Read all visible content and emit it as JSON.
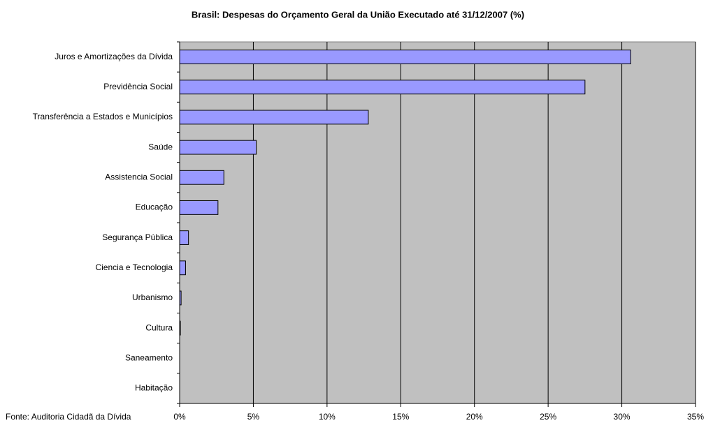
{
  "chart_data": {
    "type": "bar",
    "orientation": "horizontal",
    "title": "Brasil: Despesas do Orçamento Geral da União Executado até 31/12/2007 (%)",
    "source": "Fonte: Auditoria Cidadã da Dívida",
    "categories": [
      "Juros e Amortizações da Dívida",
      "Previdência Social",
      "Transferência a Estados e Municípios",
      "Saúde",
      "Assistencia Social",
      "Educação",
      "Segurança Pública",
      "Ciencia e Tecnologia",
      "Urbanismo",
      "Cultura",
      "Saneamento",
      "Habitação"
    ],
    "values": [
      30.6,
      27.5,
      12.8,
      5.2,
      3.0,
      2.6,
      0.6,
      0.4,
      0.1,
      0.05,
      0,
      0
    ],
    "color": "#9999ff",
    "xlim": [
      0,
      35
    ],
    "xticks": [
      {
        "value": 0,
        "label": "0%"
      },
      {
        "value": 5,
        "label": "5%"
      },
      {
        "value": 10,
        "label": "10%"
      },
      {
        "value": 15,
        "label": "15%"
      },
      {
        "value": 20,
        "label": "20%"
      },
      {
        "value": 25,
        "label": "25%"
      },
      {
        "value": 30,
        "label": "30%"
      },
      {
        "value": 35,
        "label": "35%"
      }
    ],
    "grid": true
  }
}
